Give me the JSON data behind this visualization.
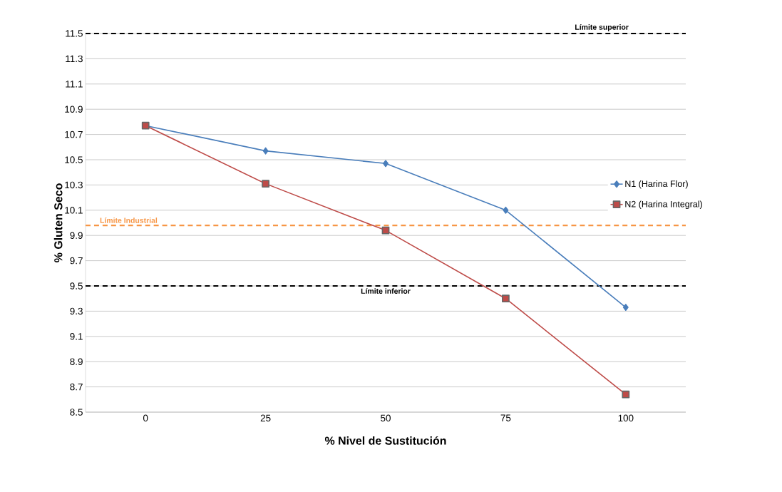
{
  "chart_data": {
    "type": "line",
    "xlabel": "% Nivel de Sustitución",
    "ylabel": "% Gluten Seco",
    "categories": [
      "0",
      "25",
      "50",
      "75",
      "100"
    ],
    "series": [
      {
        "name": "N1 (Harina Flor)",
        "color": "#4a7ebb",
        "marker": "diamond",
        "values": [
          10.77,
          10.57,
          10.47,
          10.1,
          9.33
        ]
      },
      {
        "name": "N2 (Harina Integral)",
        "color": "#be4b48",
        "marker": "square",
        "values": [
          10.77,
          10.31,
          9.94,
          9.4,
          8.64
        ]
      }
    ],
    "ylim": [
      8.5,
      11.5
    ],
    "yticks": [
      8.5,
      8.7,
      8.9,
      9.1,
      9.3,
      9.5,
      9.7,
      9.9,
      10.1,
      10.3,
      10.5,
      10.7,
      10.9,
      11.1,
      11.3,
      11.5
    ],
    "ref_lines": [
      {
        "axis": "y",
        "value": 11.5,
        "label": "Límite superior",
        "color": "#000000",
        "line_style": "dashed"
      },
      {
        "axis": "y",
        "value": 9.98,
        "label": "Límite Industrial",
        "color": "#f79646",
        "line_style": "dashed"
      },
      {
        "axis": "y",
        "value": 9.5,
        "label": "Límite inferior",
        "color": "#000000",
        "line_style": "dashed"
      }
    ],
    "grid": "y",
    "legend": "right",
    "line_style": "solid"
  }
}
